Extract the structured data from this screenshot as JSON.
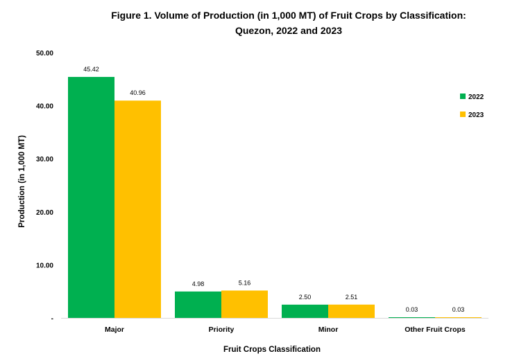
{
  "chart_data": {
    "type": "bar",
    "title_line1": "Figure 1. Volume of Production (in 1,000 MT) of Fruit Crops by Classification:",
    "title_line2": "Quezon, 2022 and 2023",
    "xlabel": "Fruit Crops Classification",
    "ylabel": "Production (in 1,000 MT)",
    "ylim": [
      0,
      50
    ],
    "yticks": [
      0,
      10,
      20,
      30,
      40,
      50
    ],
    "ytick_labels": [
      "-",
      "10.00",
      "20.00",
      "30.00",
      "40.00",
      "50.00"
    ],
    "categories": [
      "Major",
      "Priority",
      "Minor",
      "Other Fruit Crops"
    ],
    "series": [
      {
        "name": "2022",
        "color": "#00B050",
        "values": [
          45.42,
          4.98,
          2.5,
          0.03
        ],
        "labels": [
          "45.42",
          "4.98",
          "2.50",
          "0.03"
        ]
      },
      {
        "name": "2023",
        "color": "#FFC000",
        "values": [
          40.96,
          5.16,
          2.51,
          0.03
        ],
        "labels": [
          "40.96",
          "5.16",
          "2.51",
          "0.03"
        ]
      }
    ],
    "grid": false,
    "legend_position": "top-right"
  }
}
